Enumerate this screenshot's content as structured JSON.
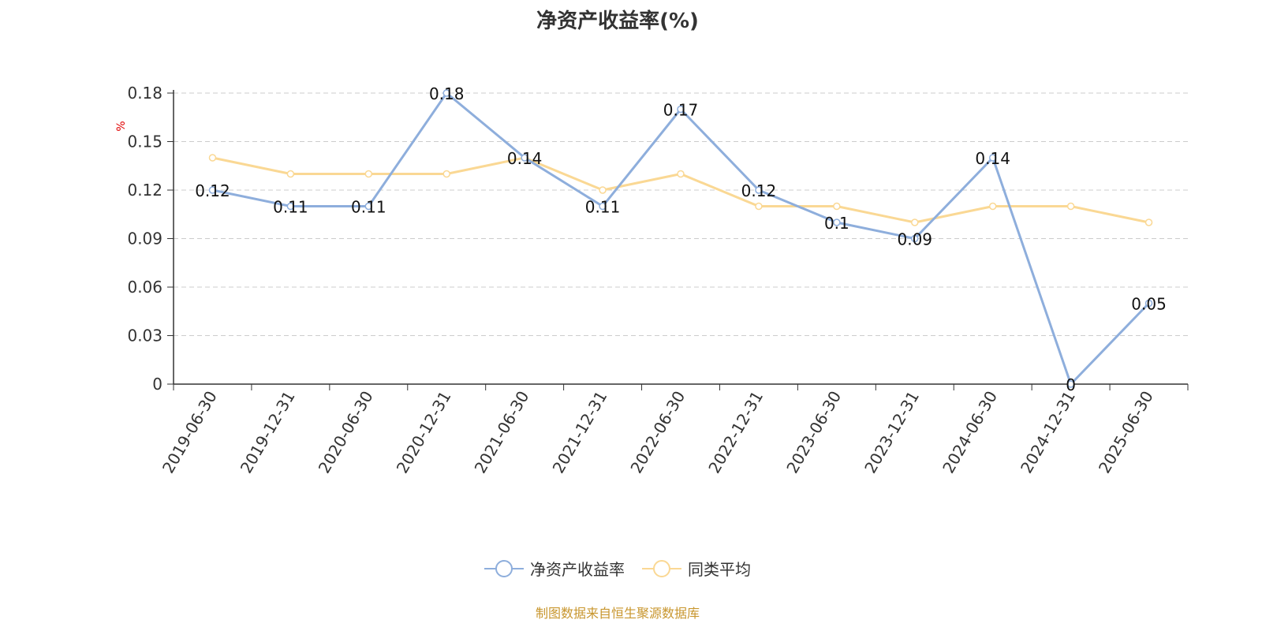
{
  "chart_data": {
    "type": "line",
    "title": "净资产收益率(%)",
    "ylabel": "%",
    "xlabel": "",
    "categories": [
      "2019-06-30",
      "2019-12-31",
      "2020-06-30",
      "2020-12-31",
      "2021-06-30",
      "2021-12-31",
      "2022-06-30",
      "2022-12-31",
      "2023-06-30",
      "2023-12-31",
      "2024-06-30",
      "2024-12-31",
      "2025-06-30"
    ],
    "ylim": [
      0,
      0.18
    ],
    "yticks": [
      "0",
      "0.03",
      "0.06",
      "0.09",
      "0.12",
      "0.15",
      "0.18"
    ],
    "grid": true,
    "legend_position": "bottom",
    "series": [
      {
        "name": "净资产收益率",
        "color": "#8eaedc",
        "values": [
          0.12,
          0.11,
          0.11,
          0.18,
          0.14,
          0.11,
          0.17,
          0.12,
          0.1,
          0.09,
          0.14,
          0,
          0.05
        ],
        "labels": [
          "0.12",
          "0.11",
          "0.11",
          "0.18",
          "0.14",
          "0.11",
          "0.17",
          "0.12",
          "0.1",
          "0.09",
          "0.14",
          "0",
          "0.05"
        ]
      },
      {
        "name": "同类平均",
        "color": "#fad894",
        "values": [
          0.14,
          0.13,
          0.13,
          0.13,
          0.14,
          0.12,
          0.13,
          0.11,
          0.11,
          0.1,
          0.11,
          0.11,
          0.1
        ]
      }
    ]
  },
  "source_note": "制图数据来自恒生聚源数据库",
  "colors": {
    "axis": "#333333",
    "grid": "#cccccc",
    "ylabel": "#e00000",
    "source": "#c8962e"
  }
}
